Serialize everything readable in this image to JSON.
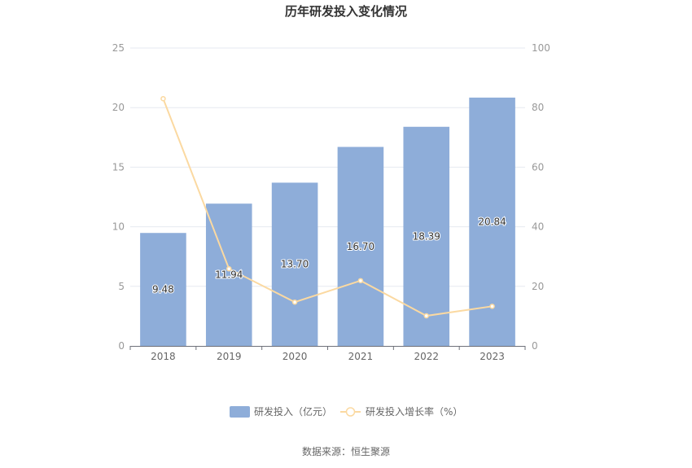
{
  "chart_data": {
    "type": "bar",
    "title": "历年研发投入变化情况",
    "categories": [
      "2018",
      "2019",
      "2020",
      "2021",
      "2022",
      "2023"
    ],
    "series": [
      {
        "name": "研发投入（亿元）",
        "type": "bar",
        "axis": "left",
        "values": [
          9.48,
          11.94,
          13.7,
          16.7,
          18.39,
          20.84
        ],
        "labels": [
          "9.48",
          "11.94",
          "13.70",
          "16.70",
          "18.39",
          "20.84"
        ],
        "color": "#8eadd9"
      },
      {
        "name": "研发投入增长率（%）",
        "type": "line",
        "axis": "right",
        "values": [
          83,
          25.9,
          14.7,
          21.9,
          10.1,
          13.3
        ],
        "color": "#fbd9a1"
      }
    ],
    "y_left": {
      "min": 0,
      "max": 25,
      "ticks": [
        "0",
        "5",
        "10",
        "15",
        "20",
        "25"
      ]
    },
    "y_right": {
      "min": 0,
      "max": 100,
      "ticks": [
        "0",
        "20",
        "40",
        "60",
        "80",
        "100"
      ]
    },
    "grid": true,
    "legend_position": "bottom",
    "source": "数据来源：恒生聚源"
  }
}
